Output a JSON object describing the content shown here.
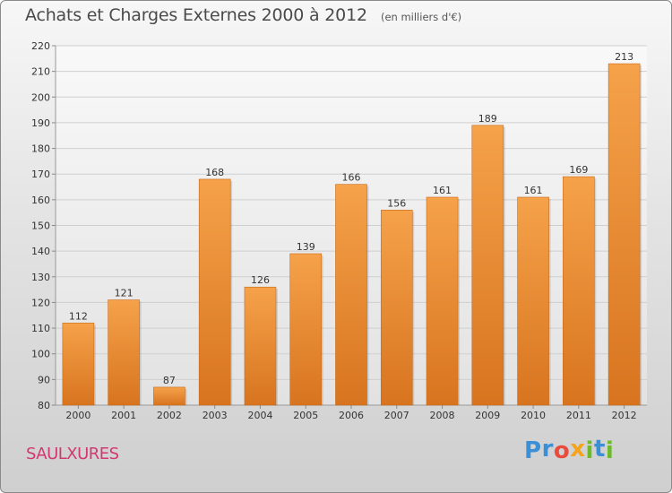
{
  "header": {
    "title": "Achats et Charges Externes 2000 à 2012",
    "subtitle": "(en milliers d'€)"
  },
  "footer": {
    "city": "SAULXURES",
    "logo_letters": [
      "P",
      "r",
      "o",
      "x",
      "i",
      "t",
      "i"
    ],
    "logo_colors": [
      "#3a8fd6",
      "#3a8fd6",
      "#e94b3c",
      "#f5a31a",
      "#6dbb2a",
      "#3a8fd6",
      "#6dbb2a"
    ]
  },
  "chart_data": {
    "type": "bar",
    "categories": [
      "2000",
      "2001",
      "2002",
      "2003",
      "2004",
      "2005",
      "2006",
      "2007",
      "2008",
      "2009",
      "2010",
      "2011",
      "2012"
    ],
    "values": [
      112,
      121,
      87,
      168,
      126,
      139,
      166,
      156,
      161,
      189,
      161,
      169,
      213
    ],
    "ylim": [
      80,
      220
    ],
    "yticks": [
      80,
      90,
      100,
      110,
      120,
      130,
      140,
      150,
      160,
      170,
      180,
      190,
      200,
      210,
      220
    ],
    "grid": true,
    "bar_color_top": "#f5a24a",
    "bar_color_bottom": "#d8741f",
    "title": "Achats et Charges Externes 2000 à 2012",
    "subtitle": "(en milliers d'€)"
  }
}
